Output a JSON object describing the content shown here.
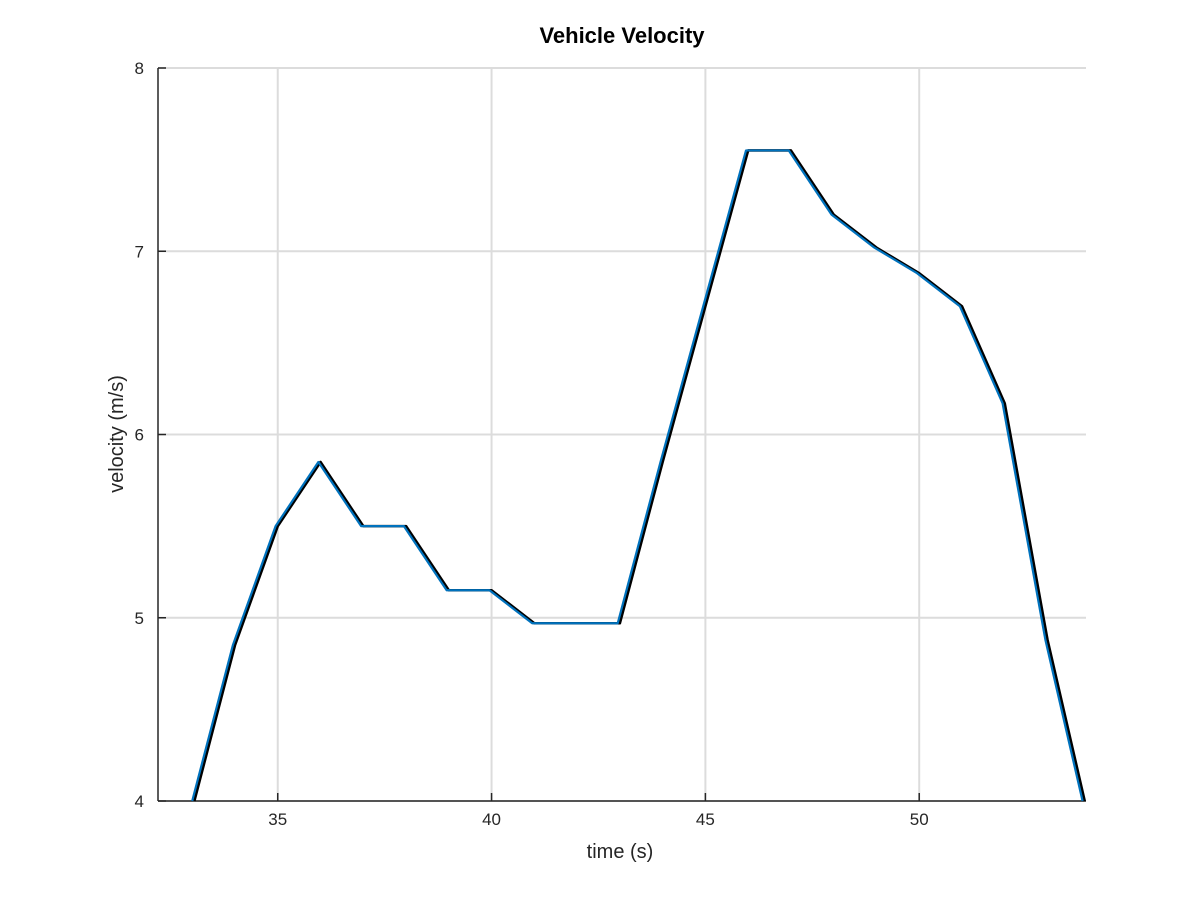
{
  "chart_data": {
    "type": "line",
    "title": "Vehicle Velocity",
    "xlabel": "time (s)",
    "ylabel": "velocity (m/s)",
    "xlim": [
      32.2,
      53.9
    ],
    "ylim": [
      4,
      8
    ],
    "xticks": [
      35,
      40,
      45,
      50
    ],
    "yticks": [
      4,
      5,
      6,
      7,
      8
    ],
    "grid": true,
    "series": [
      {
        "color": "#000000",
        "x": [
          33.05,
          34.0,
          35.0,
          36.0,
          37.0,
          38.0,
          39.0,
          40.0,
          41.0,
          42.0,
          43.0,
          44.0,
          45.0,
          46.0,
          47.0,
          48.0,
          49.0,
          50.0,
          51.0,
          52.0,
          53.0,
          53.87
        ],
        "y": [
          4.0,
          4.85,
          5.5,
          5.85,
          5.5,
          5.5,
          5.15,
          5.15,
          4.97,
          4.97,
          4.97,
          5.85,
          6.7,
          7.55,
          7.55,
          7.2,
          7.02,
          6.88,
          6.7,
          6.17,
          4.88,
          4.0
        ]
      },
      {
        "color": "#0072bd",
        "x": [
          33.0,
          33.95,
          34.95,
          35.95,
          36.95,
          37.95,
          38.95,
          39.95,
          40.95,
          41.95,
          42.95,
          43.95,
          44.95,
          45.95,
          46.95,
          47.95,
          48.95,
          49.95,
          50.95,
          51.95,
          52.95,
          53.82
        ],
        "y": [
          4.0,
          4.85,
          5.5,
          5.85,
          5.5,
          5.5,
          5.15,
          5.15,
          4.97,
          4.97,
          4.97,
          5.85,
          6.7,
          7.55,
          7.55,
          7.2,
          7.02,
          6.88,
          6.7,
          6.17,
          4.88,
          4.0
        ]
      }
    ]
  }
}
